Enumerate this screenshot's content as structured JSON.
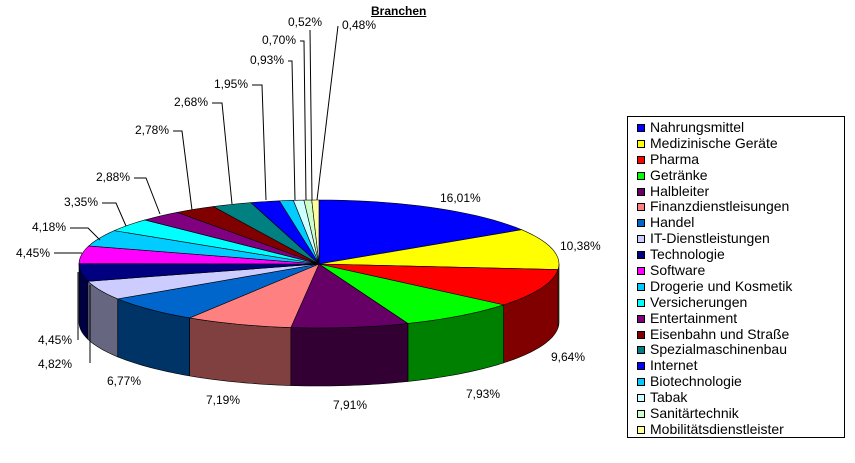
{
  "chart_data": {
    "type": "pie",
    "title": "Branchen",
    "style": "3d-exploded-pie",
    "legend_position": "right",
    "slices": [
      {
        "label": "Nahrungsmittel",
        "value": 16.01,
        "value_label": "16,01%",
        "color": "#0000ff"
      },
      {
        "label": "Medizinische Geräte",
        "value": 10.38,
        "value_label": "10,38%",
        "color": "#ffff00"
      },
      {
        "label": "Pharma",
        "value": 9.64,
        "value_label": "9,64%",
        "color": "#ff0000"
      },
      {
        "label": "Getränke",
        "value": 7.93,
        "value_label": "7,93%",
        "color": "#00ff00"
      },
      {
        "label": "Halbleiter",
        "value": 7.91,
        "value_label": "7,91%",
        "color": "#660066"
      },
      {
        "label": "Finanzdienstleisungen",
        "value": 7.19,
        "value_label": "7,19%",
        "color": "#ff8080"
      },
      {
        "label": "Handel",
        "value": 6.77,
        "value_label": "6,77%",
        "color": "#0066cc"
      },
      {
        "label": "IT-Dienstleistungen",
        "value": 4.82,
        "value_label": "4,82%",
        "color": "#ccccff"
      },
      {
        "label": "Technologie",
        "value": 4.45,
        "value_label": "4,45%",
        "color": "#000080"
      },
      {
        "label": "Software",
        "value": 4.45,
        "value_label": "4,45%",
        "color": "#ff00ff"
      },
      {
        "label": "Drogerie und Kosmetik",
        "value": 4.18,
        "value_label": "4,18%",
        "color": "#00ccff"
      },
      {
        "label": "Versicherungen",
        "value": 3.35,
        "value_label": "3,35%",
        "color": "#00ffff"
      },
      {
        "label": "Entertainment",
        "value": 2.88,
        "value_label": "2,88%",
        "color": "#800080"
      },
      {
        "label": "Eisenbahn und Straße",
        "value": 2.78,
        "value_label": "2,78%",
        "color": "#800000"
      },
      {
        "label": "Spezialmaschinenbau",
        "value": 2.68,
        "value_label": "2,68%",
        "color": "#008080"
      },
      {
        "label": "Internet",
        "value": 1.95,
        "value_label": "1,95%",
        "color": "#0000ff"
      },
      {
        "label": "Biotechnologie",
        "value": 0.93,
        "value_label": "0,93%",
        "color": "#00ccff"
      },
      {
        "label": "Tabak",
        "value": 0.7,
        "value_label": "0,70%",
        "color": "#ccffff"
      },
      {
        "label": "Sanitärtechnik",
        "value": 0.52,
        "value_label": "0,52%",
        "color": "#ccffcc"
      },
      {
        "label": "Mobilitätsdienstleister",
        "value": 0.48,
        "value_label": "0,48%",
        "color": "#ffff99"
      }
    ]
  }
}
